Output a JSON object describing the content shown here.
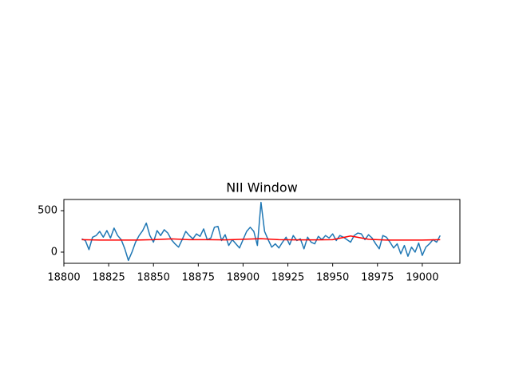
{
  "chart_data": {
    "type": "line",
    "title": "NII Window",
    "xlim": [
      18800,
      19021
    ],
    "xticks": [
      18800,
      18825,
      18850,
      18875,
      18900,
      18925,
      18950,
      18975,
      19000
    ],
    "ylim": [
      -135,
      635
    ],
    "yticks": [
      0,
      500
    ],
    "series": [
      {
        "color": "#1f77b4",
        "x": [
          18810,
          18812,
          18814,
          18816,
          18818,
          18820,
          18822,
          18824,
          18826,
          18828,
          18830,
          18832,
          18834,
          18836,
          18838,
          18840,
          18842,
          18844,
          18846,
          18848,
          18850,
          18852,
          18854,
          18856,
          18858,
          18860,
          18862,
          18864,
          18866,
          18868,
          18870,
          18872,
          18874,
          18876,
          18878,
          18880,
          18882,
          18884,
          18886,
          18888,
          18890,
          18892,
          18894,
          18896,
          18898,
          18900,
          18902,
          18904,
          18906,
          18908,
          18910,
          18912,
          18914,
          18916,
          18918,
          18920,
          18922,
          18924,
          18926,
          18928,
          18930,
          18932,
          18934,
          18936,
          18938,
          18940,
          18942,
          18944,
          18946,
          18948,
          18950,
          18952,
          18954,
          18956,
          18958,
          18960,
          18962,
          18964,
          18966,
          18968,
          18970,
          18972,
          18974,
          18976,
          18978,
          18980,
          18982,
          18984,
          18986,
          18988,
          18990,
          18992,
          18994,
          18996,
          18998,
          19000,
          19002,
          19004,
          19006,
          19008,
          19010
        ],
        "values": [
          160,
          140,
          30,
          180,
          200,
          250,
          180,
          260,
          170,
          290,
          200,
          150,
          40,
          -100,
          0,
          120,
          200,
          260,
          350,
          200,
          120,
          260,
          200,
          270,
          230,
          150,
          100,
          60,
          150,
          250,
          200,
          160,
          220,
          190,
          280,
          150,
          170,
          300,
          310,
          140,
          210,
          80,
          150,
          100,
          50,
          150,
          250,
          300,
          250,
          80,
          600,
          250,
          150,
          60,
          100,
          50,
          120,
          180,
          90,
          200,
          140,
          160,
          40,
          180,
          120,
          100,
          190,
          150,
          200,
          170,
          220,
          140,
          200,
          180,
          150,
          120,
          200,
          230,
          220,
          150,
          210,
          170,
          100,
          40,
          200,
          180,
          120,
          50,
          100,
          -20,
          80,
          -50,
          60,
          0,
          110,
          -40,
          60,
          100,
          150,
          120,
          200
        ]
      },
      {
        "color": "#ff0000",
        "x": [
          18810,
          18820,
          18830,
          18840,
          18850,
          18860,
          18870,
          18880,
          18890,
          18900,
          18910,
          18920,
          18930,
          18940,
          18950,
          18960,
          18970,
          18980,
          18990,
          19000,
          19010
        ],
        "values": [
          150,
          145,
          145,
          145,
          150,
          160,
          150,
          150,
          148,
          155,
          162,
          150,
          148,
          148,
          150,
          195,
          155,
          145,
          145,
          145,
          150
        ]
      }
    ]
  }
}
